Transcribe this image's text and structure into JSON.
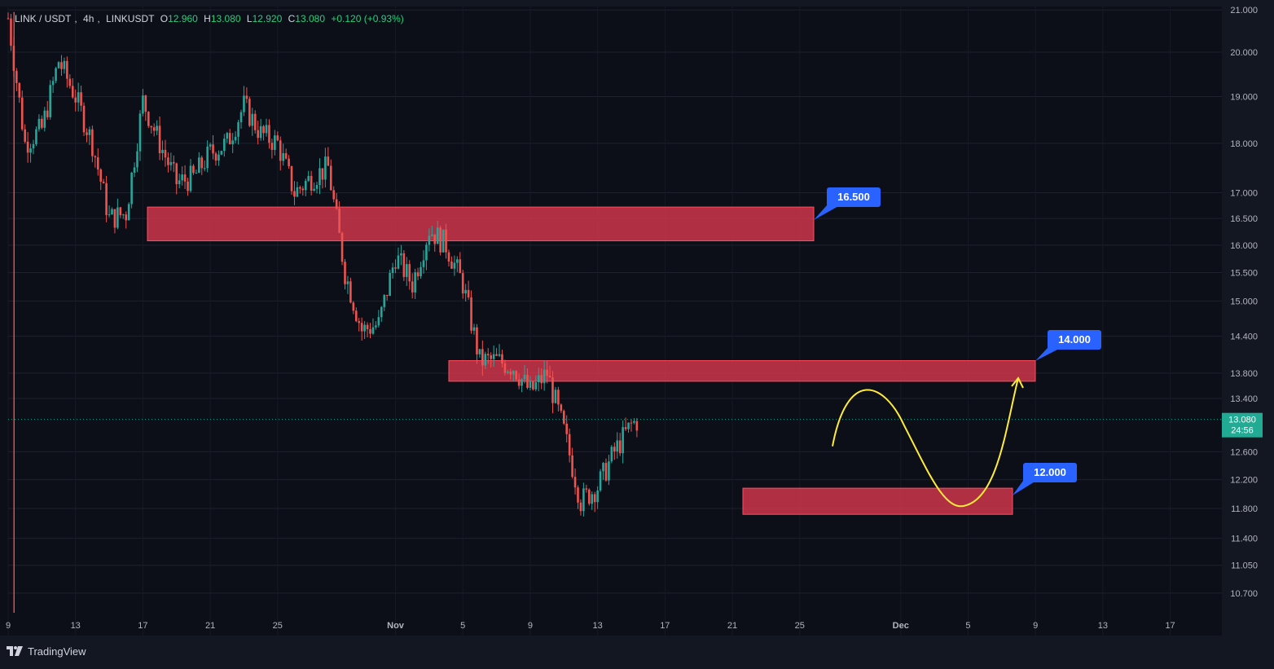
{
  "header": {
    "symbol": "LINK / USDT",
    "interval": "4h",
    "ticker": "LINKUSDT",
    "open_label": "O",
    "open": "12.960",
    "high_label": "H",
    "high": "13.080",
    "low_label": "L",
    "low": "12.920",
    "close_label": "C",
    "close": "13.080",
    "change": "+0.120 (+0.93%)"
  },
  "branding": {
    "name": "TradingView",
    "icon": "tradingview-logo-icon"
  },
  "colors": {
    "background": "#131722",
    "bull": "#26a69a",
    "bear": "#ef5350",
    "zone_fill": "#e0394f",
    "label_blue": "#2962ff",
    "projection": "#ffeb3b",
    "last_price_bg": "#22ab94"
  },
  "last_price": {
    "value": "13.080",
    "countdown": "24:56"
  },
  "annotations": [
    {
      "kind": "resistance-zone",
      "label": "16.500",
      "low": 16.08,
      "high": 16.72
    },
    {
      "kind": "resistance-zone",
      "label": "14.000",
      "low": 13.67,
      "high": 14.0
    },
    {
      "kind": "support-zone",
      "label": "12.000",
      "low": 11.72,
      "high": 12.08
    }
  ],
  "projection_path": "curve up from ~12.7 to ~13.35, down into the 12.000 zone (~11.85), then up to the 14.000 zone",
  "chart_data": {
    "type": "candlestick",
    "title": "LINK / USDT, 4h, LINKUSDT",
    "y_scale": "log",
    "ylim": [
      10.5,
      21.1
    ],
    "y_ticks": [
      "21.000",
      "20.000",
      "19.000",
      "18.000",
      "17.000",
      "16.500",
      "16.000",
      "15.500",
      "15.000",
      "14.400",
      "13.800",
      "13.400",
      "12.600",
      "12.200",
      "11.800",
      "11.400",
      "11.050",
      "10.700"
    ],
    "x_ticks": [
      "9",
      "13",
      "17",
      "21",
      "25",
      "Nov",
      "5",
      "9",
      "13",
      "17",
      "21",
      "25",
      "Dec",
      "5",
      "9",
      "13",
      "17"
    ],
    "path_points": [
      [
        0,
        20.8
      ],
      [
        1,
        18.0
      ],
      [
        2,
        18.3
      ],
      [
        3,
        19.8
      ],
      [
        4,
        19.0
      ],
      [
        5,
        18.0
      ],
      [
        6,
        16.5
      ],
      [
        7,
        16.6
      ],
      [
        8,
        18.9
      ],
      [
        9,
        18.0
      ],
      [
        10,
        17.2
      ],
      [
        11,
        17.3
      ],
      [
        12,
        17.8
      ],
      [
        13,
        18.0
      ],
      [
        14,
        18.8
      ],
      [
        15,
        18.2
      ],
      [
        16,
        18.0
      ],
      [
        17,
        17.0
      ],
      [
        18,
        17.3
      ],
      [
        19,
        17.5
      ],
      [
        20,
        15.5
      ],
      [
        21,
        14.5
      ],
      [
        22,
        14.6
      ],
      [
        23,
        15.8
      ],
      [
        24,
        15.3
      ],
      [
        25,
        16.3
      ],
      [
        26,
        16.0
      ],
      [
        27,
        15.3
      ],
      [
        28,
        14.0
      ],
      [
        29,
        14.0
      ],
      [
        30,
        13.9
      ],
      [
        31,
        13.5
      ],
      [
        32,
        13.8
      ],
      [
        33,
        12.9
      ],
      [
        34,
        11.9
      ],
      [
        35,
        12.1
      ],
      [
        36,
        12.6
      ],
      [
        37,
        13.0
      ],
      [
        37.5,
        13.08
      ]
    ]
  }
}
